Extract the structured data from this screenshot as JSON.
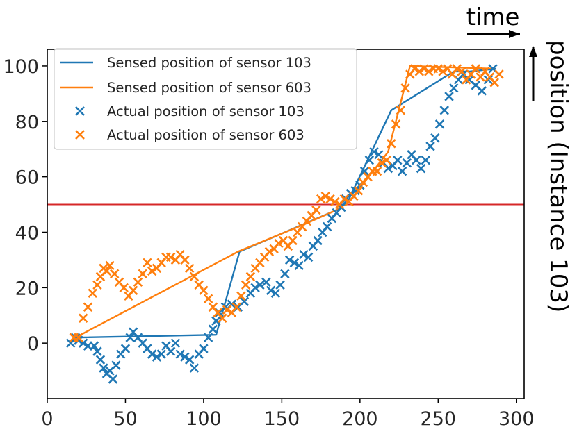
{
  "chart_data": {
    "type": "scatter",
    "xlim": [
      0,
      305
    ],
    "ylim": [
      -20,
      106
    ],
    "xticks": [
      0,
      50,
      100,
      150,
      200,
      250,
      300
    ],
    "yticks": [
      0,
      20,
      40,
      60,
      80,
      100
    ],
    "xtick_labels": [
      "0",
      "50",
      "100",
      "150",
      "200",
      "250",
      "300"
    ],
    "ytick_labels": [
      "0",
      "20",
      "40",
      "60",
      "80",
      "100"
    ],
    "grid": false,
    "legend_position": "upper-left",
    "annotations": {
      "time_label": "time",
      "position_label": "position (Instance 103)"
    },
    "threshold": {
      "y": 50,
      "color": "#d62728"
    },
    "series": [
      {
        "name": "Sensed position of sensor 103",
        "kind": "line",
        "color": "#1f77b4",
        "points": [
          [
            15,
            0
          ],
          [
            18,
            2
          ],
          [
            108,
            3
          ],
          [
            123,
            33
          ],
          [
            185,
            48
          ],
          [
            193,
            52
          ],
          [
            220,
            84
          ],
          [
            260,
            98
          ],
          [
            270,
            98
          ],
          [
            287,
            99
          ]
        ]
      },
      {
        "name": "Sensed position of sensor 603",
        "kind": "line",
        "color": "#ff7f0e",
        "points": [
          [
            15,
            0
          ],
          [
            18,
            2
          ],
          [
            122,
            33
          ],
          [
            165,
            43
          ],
          [
            185,
            48
          ],
          [
            193,
            51
          ],
          [
            218,
            69
          ],
          [
            232,
            100
          ],
          [
            286,
            99
          ]
        ]
      },
      {
        "name": "Actual position of sensor 103",
        "kind": "scatter",
        "marker": "x",
        "color": "#1f77b4",
        "points": [
          [
            15,
            0
          ],
          [
            18,
            2
          ],
          [
            20,
            1
          ],
          [
            23,
            0
          ],
          [
            26,
            -1
          ],
          [
            30,
            -1
          ],
          [
            32,
            -3
          ],
          [
            34,
            -6
          ],
          [
            36,
            -9
          ],
          [
            38,
            -11
          ],
          [
            40,
            -10
          ],
          [
            42,
            -13
          ],
          [
            44,
            -8
          ],
          [
            47,
            -4
          ],
          [
            50,
            -2
          ],
          [
            53,
            2
          ],
          [
            55,
            4
          ],
          [
            58,
            2
          ],
          [
            61,
            0
          ],
          [
            64,
            -2
          ],
          [
            67,
            -4
          ],
          [
            70,
            -5
          ],
          [
            73,
            -4
          ],
          [
            76,
            -1
          ],
          [
            79,
            -3
          ],
          [
            82,
            0
          ],
          [
            85,
            -4
          ],
          [
            88,
            -5
          ],
          [
            91,
            -6
          ],
          [
            94,
            -9
          ],
          [
            97,
            -4
          ],
          [
            100,
            -2
          ],
          [
            103,
            2
          ],
          [
            106,
            5
          ],
          [
            108,
            8
          ],
          [
            110,
            11
          ],
          [
            114,
            13
          ],
          [
            118,
            14
          ],
          [
            122,
            13
          ],
          [
            126,
            15
          ],
          [
            130,
            18
          ],
          [
            133,
            20
          ],
          [
            136,
            21
          ],
          [
            140,
            22
          ],
          [
            143,
            19
          ],
          [
            146,
            18
          ],
          [
            149,
            21
          ],
          [
            152,
            25
          ],
          [
            155,
            30
          ],
          [
            158,
            29
          ],
          [
            161,
            28
          ],
          [
            164,
            32
          ],
          [
            167,
            31
          ],
          [
            170,
            35
          ],
          [
            173,
            37
          ],
          [
            176,
            40
          ],
          [
            179,
            42
          ],
          [
            182,
            45
          ],
          [
            185,
            47
          ],
          [
            188,
            49
          ],
          [
            191,
            52
          ],
          [
            194,
            54
          ],
          [
            197,
            55
          ],
          [
            200,
            57
          ],
          [
            203,
            62
          ],
          [
            206,
            66
          ],
          [
            209,
            69
          ],
          [
            212,
            68
          ],
          [
            215,
            65
          ],
          [
            218,
            63
          ],
          [
            221,
            64
          ],
          [
            224,
            66
          ],
          [
            227,
            62
          ],
          [
            230,
            65
          ],
          [
            233,
            68
          ],
          [
            236,
            66
          ],
          [
            239,
            63
          ],
          [
            242,
            66
          ],
          [
            245,
            71
          ],
          [
            248,
            74
          ],
          [
            251,
            79
          ],
          [
            254,
            84
          ],
          [
            257,
            89
          ],
          [
            260,
            92
          ],
          [
            263,
            95
          ],
          [
            266,
            97
          ],
          [
            270,
            95
          ],
          [
            274,
            93
          ],
          [
            278,
            91
          ],
          [
            282,
            95
          ],
          [
            285,
            99
          ]
        ]
      },
      {
        "name": "Actual position of sensor 603",
        "kind": "scatter",
        "marker": "x",
        "color": "#ff7f0e",
        "points": [
          [
            17,
            2
          ],
          [
            20,
            2
          ],
          [
            23,
            9
          ],
          [
            26,
            13
          ],
          [
            29,
            18
          ],
          [
            32,
            21
          ],
          [
            34,
            24
          ],
          [
            36,
            27
          ],
          [
            38,
            26
          ],
          [
            40,
            28
          ],
          [
            43,
            25
          ],
          [
            46,
            22
          ],
          [
            49,
            20
          ],
          [
            52,
            17
          ],
          [
            55,
            19
          ],
          [
            58,
            22
          ],
          [
            61,
            25
          ],
          [
            64,
            29
          ],
          [
            67,
            26
          ],
          [
            70,
            27
          ],
          [
            73,
            29
          ],
          [
            76,
            31
          ],
          [
            79,
            31
          ],
          [
            82,
            30
          ],
          [
            85,
            32
          ],
          [
            88,
            30
          ],
          [
            91,
            27
          ],
          [
            94,
            24
          ],
          [
            97,
            21
          ],
          [
            100,
            19
          ],
          [
            103,
            16
          ],
          [
            106,
            13
          ],
          [
            109,
            11
          ],
          [
            112,
            9
          ],
          [
            115,
            12
          ],
          [
            118,
            11
          ],
          [
            121,
            13
          ],
          [
            124,
            17
          ],
          [
            127,
            21
          ],
          [
            130,
            24
          ],
          [
            133,
            27
          ],
          [
            136,
            29
          ],
          [
            139,
            31
          ],
          [
            142,
            33
          ],
          [
            145,
            34
          ],
          [
            148,
            36
          ],
          [
            151,
            37
          ],
          [
            154,
            35
          ],
          [
            157,
            37
          ],
          [
            160,
            40
          ],
          [
            163,
            42
          ],
          [
            166,
            44
          ],
          [
            169,
            46
          ],
          [
            172,
            48
          ],
          [
            175,
            52
          ],
          [
            178,
            53
          ],
          [
            181,
            52
          ],
          [
            184,
            51
          ],
          [
            187,
            50
          ],
          [
            190,
            52
          ],
          [
            193,
            51
          ],
          [
            196,
            53
          ],
          [
            199,
            55
          ],
          [
            202,
            58
          ],
          [
            205,
            60
          ],
          [
            208,
            62
          ],
          [
            211,
            62
          ],
          [
            214,
            65
          ],
          [
            217,
            66
          ],
          [
            220,
            72
          ],
          [
            223,
            79
          ],
          [
            226,
            84
          ],
          [
            229,
            92
          ],
          [
            232,
            97
          ],
          [
            235,
            99
          ],
          [
            238,
            98
          ],
          [
            241,
            99
          ],
          [
            244,
            98
          ],
          [
            247,
            99
          ],
          [
            250,
            99
          ],
          [
            253,
            98
          ],
          [
            256,
            99
          ],
          [
            259,
            97
          ],
          [
            262,
            99
          ],
          [
            265,
            98
          ],
          [
            268,
            95
          ],
          [
            271,
            97
          ],
          [
            274,
            99
          ],
          [
            277,
            96
          ],
          [
            280,
            98
          ],
          [
            283,
            96
          ],
          [
            286,
            94
          ],
          [
            289,
            97
          ]
        ]
      }
    ]
  }
}
